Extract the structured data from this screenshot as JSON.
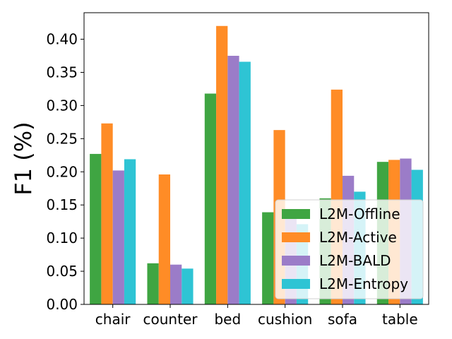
{
  "chart_data": {
    "type": "bar",
    "categories": [
      "chair",
      "counter",
      "bed",
      "cushion",
      "sofa",
      "table"
    ],
    "series": [
      {
        "name": "L2M-Offline",
        "color": "#3fa542",
        "values": [
          0.227,
          0.062,
          0.318,
          0.139,
          0.16,
          0.215
        ]
      },
      {
        "name": "L2M-Active",
        "color": "#ff8c26",
        "values": [
          0.273,
          0.196,
          0.42,
          0.263,
          0.324,
          0.218
        ]
      },
      {
        "name": "L2M-BALD",
        "color": "#9b7cc8",
        "values": [
          0.202,
          0.06,
          0.375,
          0.135,
          0.194,
          0.22
        ]
      },
      {
        "name": "L2M-Entropy",
        "color": "#2ec4d4",
        "values": [
          0.219,
          0.054,
          0.366,
          0.121,
          0.17,
          0.203
        ]
      }
    ],
    "ylabel": "F1 (%)",
    "xlabel": "",
    "ylim": [
      0,
      0.44
    ],
    "yticks": [
      "0.00",
      "0.05",
      "0.10",
      "0.15",
      "0.20",
      "0.25",
      "0.30",
      "0.35",
      "0.40"
    ],
    "grid": false,
    "legend_position": "lower-right"
  }
}
